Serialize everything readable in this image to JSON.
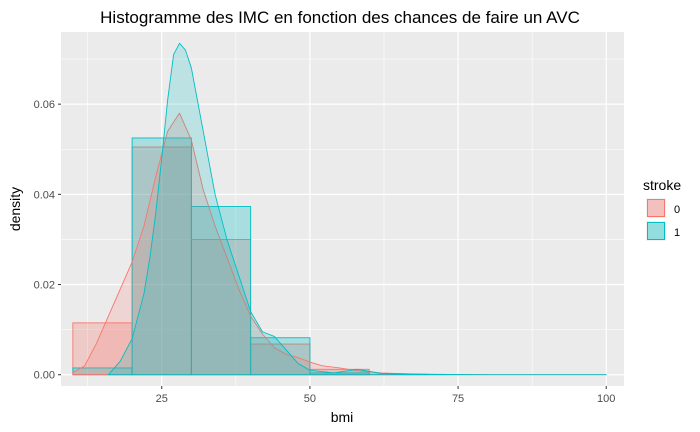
{
  "chart_data": {
    "type": "histogram+density",
    "title": "Histogramme des IMC en fonction des chances de faire un AVC",
    "xlabel": "bmi",
    "ylabel": "density",
    "xlim": [
      8,
      103
    ],
    "ylim": [
      -0.0025,
      0.076
    ],
    "x_ticks": [
      25,
      50,
      75,
      100
    ],
    "y_ticks": [
      0.0,
      0.02,
      0.04,
      0.06
    ],
    "y_tick_labels": [
      "0.00",
      "0.02",
      "0.04",
      "0.06"
    ],
    "grid": true,
    "legend": {
      "title": "stroke",
      "placement": "right",
      "entries": [
        "0",
        "1"
      ]
    },
    "colors": {
      "series_0": "#F8766D",
      "series_1": "#00BFC4",
      "panel_bg": "#EBEBEB",
      "grid": "#FFFFFF"
    },
    "histogram": {
      "bin_edges": [
        10,
        20,
        30,
        40,
        50,
        60,
        70
      ],
      "series": [
        {
          "name": "0",
          "values": [
            0.0115,
            0.0505,
            0.03,
            0.0068,
            0.0012,
            0.0001
          ]
        },
        {
          "name": "1",
          "values": [
            0.0015,
            0.0525,
            0.0373,
            0.0082,
            0.0004,
            0.0
          ]
        }
      ]
    },
    "density": {
      "series": [
        {
          "name": "0",
          "x": [
            10,
            12,
            14,
            16,
            18,
            20,
            22,
            24,
            26,
            28,
            30,
            32,
            34,
            36,
            38,
            40,
            42,
            44,
            46,
            48,
            50,
            52,
            55,
            58,
            62,
            66,
            70,
            80,
            90,
            100
          ],
          "y": [
            0.0005,
            0.002,
            0.007,
            0.013,
            0.019,
            0.025,
            0.033,
            0.044,
            0.054,
            0.058,
            0.052,
            0.041,
            0.033,
            0.026,
            0.019,
            0.013,
            0.009,
            0.006,
            0.0045,
            0.0038,
            0.0028,
            0.002,
            0.0015,
            0.0009,
            0.0004,
            0.0002,
            0.0001,
            0.0,
            0.0,
            0.0
          ]
        },
        {
          "name": "1",
          "x": [
            16,
            18,
            20,
            22,
            23,
            24,
            25,
            26,
            27,
            28,
            29,
            30,
            31,
            32,
            33,
            34,
            36,
            38,
            40,
            42,
            44,
            46,
            48,
            50,
            54,
            58,
            62,
            70,
            80,
            90,
            100
          ],
          "y": [
            0.0,
            0.003,
            0.008,
            0.018,
            0.026,
            0.036,
            0.048,
            0.061,
            0.071,
            0.0735,
            0.072,
            0.068,
            0.061,
            0.054,
            0.047,
            0.04,
            0.03,
            0.022,
            0.014,
            0.0095,
            0.0085,
            0.0055,
            0.0025,
            0.001,
            0.0004,
            0.0012,
            0.0003,
            0.0001,
            0.0,
            0.0,
            0.0
          ]
        }
      ]
    }
  }
}
